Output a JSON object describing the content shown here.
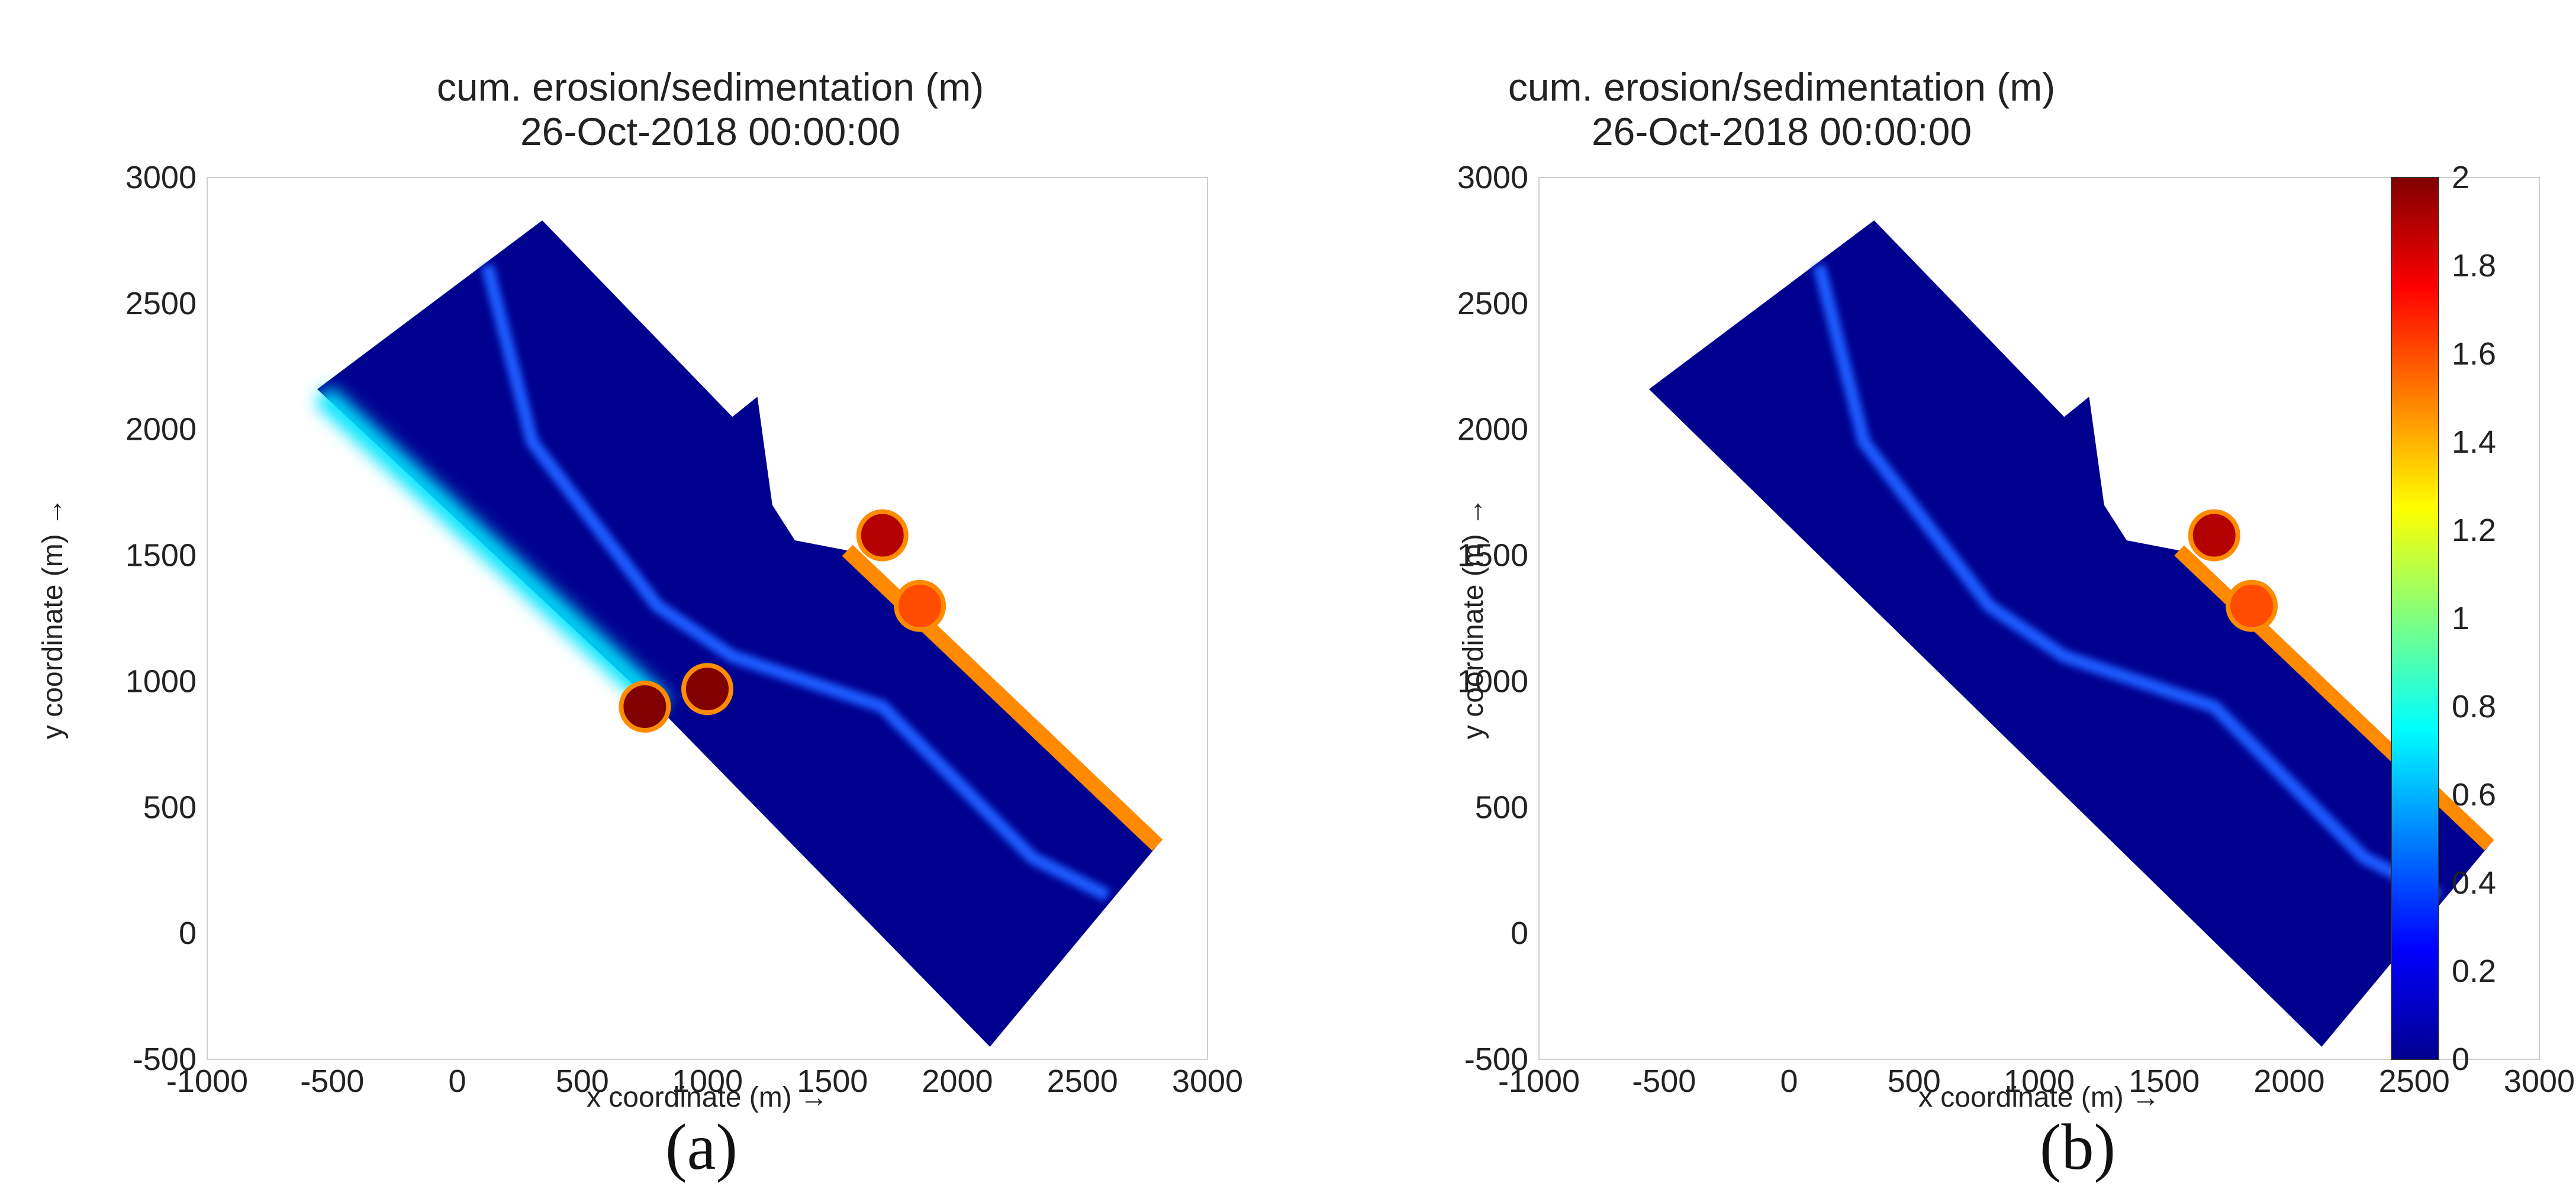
{
  "chart_data": [
    {
      "type": "heatmap",
      "panel": "(a)",
      "title_line1": "cum. erosion/sedimentation (m)",
      "title_line2": "26-Oct-2018 00:00:00",
      "xlabel": "x coordinate (m) →",
      "ylabel": "y coordinate (m) →",
      "xlim": [
        -1000,
        3000
      ],
      "ylim": [
        -500,
        3000
      ],
      "xticks": [
        -1000,
        -500,
        0,
        500,
        1000,
        1500,
        2000,
        2500,
        3000
      ],
      "yticks": [
        -500,
        0,
        500,
        1000,
        1500,
        2000,
        2500,
        3000
      ],
      "domain_polygon": [
        [
          -560,
          2160
        ],
        [
          340,
          2830
        ],
        [
          1100,
          2050
        ],
        [
          1200,
          2130
        ],
        [
          1260,
          1700
        ],
        [
          1350,
          1560
        ],
        [
          1560,
          1520
        ],
        [
          2800,
          350
        ],
        [
          2130,
          -450
        ],
        [
          820,
          880
        ]
      ],
      "channel": [
        [
          120,
          2650
        ],
        [
          300,
          1950
        ],
        [
          800,
          1300
        ],
        [
          1100,
          1100
        ],
        [
          1700,
          900
        ],
        [
          2300,
          300
        ],
        [
          2600,
          150
        ]
      ],
      "deposits": [
        {
          "x": 1000,
          "y": 970,
          "value": 2.0
        },
        {
          "x": 1700,
          "y": 1580,
          "value": 1.9
        },
        {
          "x": 1850,
          "y": 1300,
          "value": 1.6
        },
        {
          "x": 750,
          "y": 900,
          "value": 2.0
        }
      ],
      "background_value": 0.0
    },
    {
      "type": "heatmap",
      "panel": "(b)",
      "title_line1": "cum. erosion/sedimentation (m)",
      "title_line2": "26-Oct-2018 00:00:00",
      "xlabel": "x coordinate (m) →",
      "ylabel": "y coordinate (m) →",
      "xlim": [
        -1000,
        3000
      ],
      "ylim": [
        -500,
        3000
      ],
      "xticks": [
        -1000,
        -500,
        0,
        500,
        1000,
        1500,
        2000,
        2500,
        3000
      ],
      "yticks": [
        -500,
        0,
        500,
        1000,
        1500,
        2000,
        2500,
        3000
      ],
      "domain_polygon": [
        [
          -560,
          2160
        ],
        [
          340,
          2830
        ],
        [
          1100,
          2050
        ],
        [
          1200,
          2130
        ],
        [
          1260,
          1700
        ],
        [
          1350,
          1560
        ],
        [
          1560,
          1520
        ],
        [
          2800,
          350
        ],
        [
          2130,
          -450
        ]
      ],
      "channel": [
        [
          120,
          2650
        ],
        [
          300,
          1950
        ],
        [
          800,
          1300
        ],
        [
          1100,
          1100
        ],
        [
          1700,
          900
        ],
        [
          2300,
          300
        ],
        [
          2600,
          150
        ]
      ],
      "deposits": [
        {
          "x": 1700,
          "y": 1580,
          "value": 1.9
        },
        {
          "x": 1850,
          "y": 1300,
          "value": 1.6
        }
      ],
      "background_value": 0.0
    }
  ],
  "colorbar": {
    "min": 0,
    "max": 2,
    "ticks": [
      "0",
      "0.2",
      "0.4",
      "0.6",
      "0.8",
      "1",
      "1.2",
      "1.4",
      "1.6",
      "1.8",
      "2"
    ],
    "colormap": "jet"
  },
  "captions": {
    "a": "(a)",
    "b": "(b)"
  },
  "colors": {
    "low": "#00008f",
    "mid": "#00ffff",
    "high": "#800000"
  }
}
